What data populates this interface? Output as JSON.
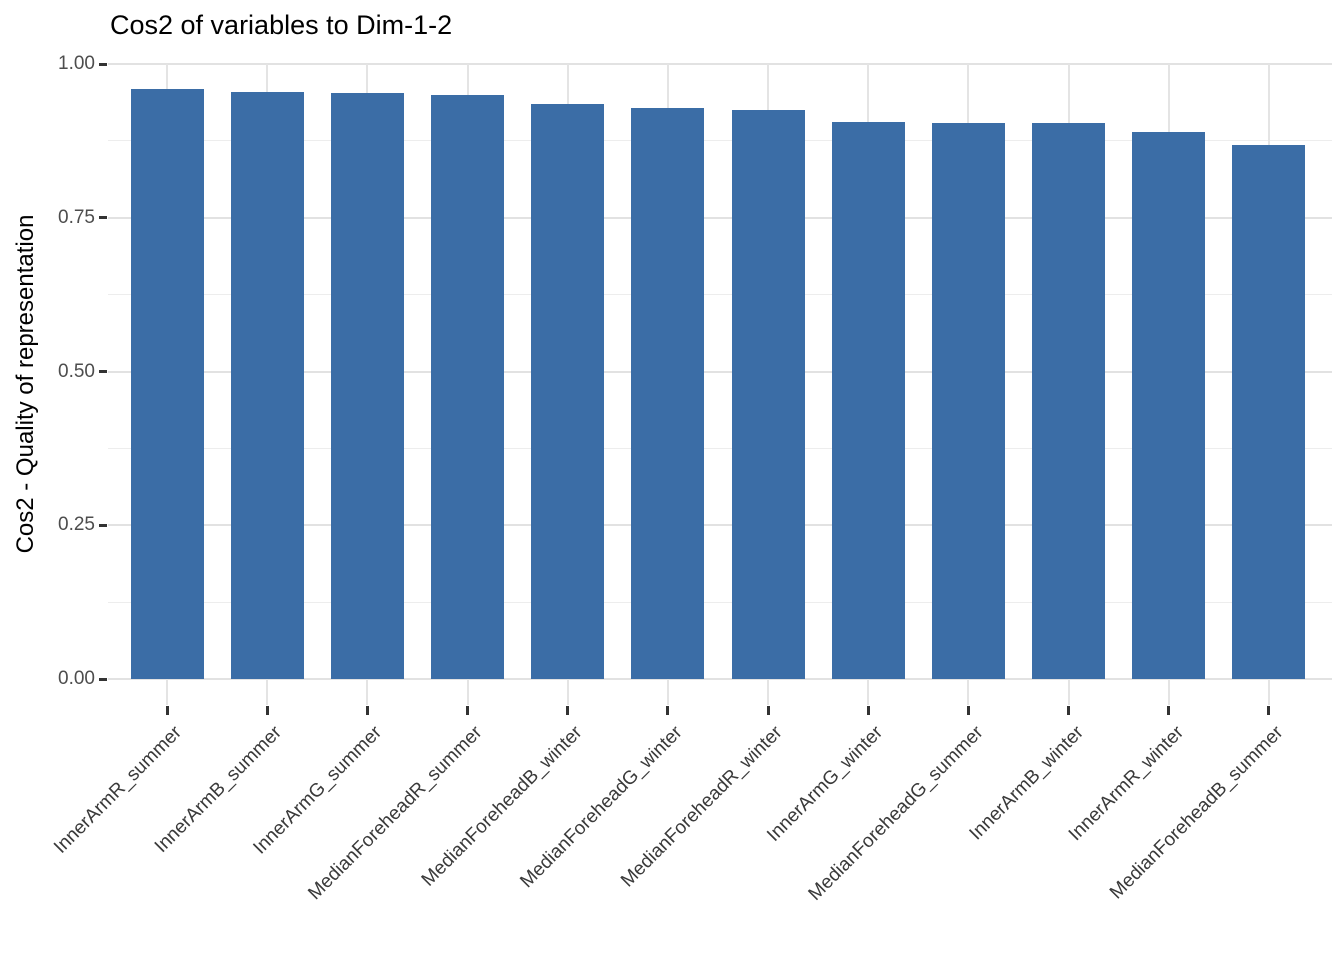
{
  "chart_data": {
    "type": "bar",
    "title": "Cos2 of variables to Dim-1-2",
    "ylabel": "Cos2 - Quality of representation",
    "xlabel": "",
    "categories": [
      "InnerArmR_summer",
      "InnerArmB_summer",
      "InnerArmG_summer",
      "MedianForeheadR_summer",
      "MedianForeheadB_winter",
      "MedianForeheadG_winter",
      "MedianForeheadR_winter",
      "InnerArmG_winter",
      "MedianForeheadG_summer",
      "InnerArmB_winter",
      "InnerArmR_winter",
      "MedianForeheadB_summer"
    ],
    "values": [
      0.96,
      0.955,
      0.953,
      0.949,
      0.935,
      0.928,
      0.926,
      0.905,
      0.904,
      0.904,
      0.889,
      0.868
    ],
    "ylim": [
      0,
      1
    ],
    "yticks": [
      0.0,
      0.25,
      0.5,
      0.75,
      1.0
    ],
    "ytick_labels": [
      "0.00",
      "0.25",
      "0.50",
      "0.75",
      "1.00"
    ],
    "yticks_minor": [
      0.125,
      0.375,
      0.625,
      0.875
    ],
    "bar_color": "#3b6da6",
    "grid": true,
    "legend_position": "none",
    "x_label_angle_deg": 45
  }
}
